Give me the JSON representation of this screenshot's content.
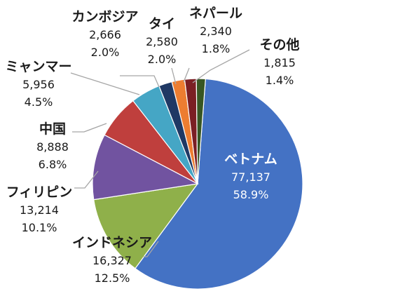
{
  "chart_data": {
    "type": "pie",
    "title": "",
    "slices": [
      {
        "label": "ベトナム",
        "value_text": "77,137",
        "percent_text": "58.9%",
        "value": 77137,
        "percent": 58.9,
        "color": "#4472C4"
      },
      {
        "label": "インドネシア",
        "value_text": "16,327",
        "percent_text": "12.5%",
        "value": 16327,
        "percent": 12.5,
        "color": "#8FB04A"
      },
      {
        "label": "フィリピン",
        "value_text": "13,214",
        "percent_text": "10.1%",
        "value": 13214,
        "percent": 10.1,
        "color": "#7153A0"
      },
      {
        "label": "中国",
        "value_text": "8,888",
        "percent_text": "6.8%",
        "value": 8888,
        "percent": 6.8,
        "color": "#BF3F3D"
      },
      {
        "label": "ミャンマー",
        "value_text": "5,956",
        "percent_text": "4.5%",
        "value": 5956,
        "percent": 4.5,
        "color": "#45A6C5"
      },
      {
        "label": "カンボジア",
        "value_text": "2,666",
        "percent_text": "2.0%",
        "value": 2666,
        "percent": 2.0,
        "color": "#1F3864"
      },
      {
        "label": "タイ",
        "value_text": "2,580",
        "percent_text": "2.0%",
        "value": 2580,
        "percent": 2.0,
        "color": "#ED7D31"
      },
      {
        "label": "ネパール",
        "value_text": "2,340",
        "percent_text": "1.8%",
        "value": 2340,
        "percent": 1.8,
        "color": "#7B1F24"
      },
      {
        "label": "その他",
        "value_text": "1,815",
        "percent_text": "1.4%",
        "value": 1815,
        "percent": 1.4,
        "color": "#375623"
      }
    ]
  }
}
